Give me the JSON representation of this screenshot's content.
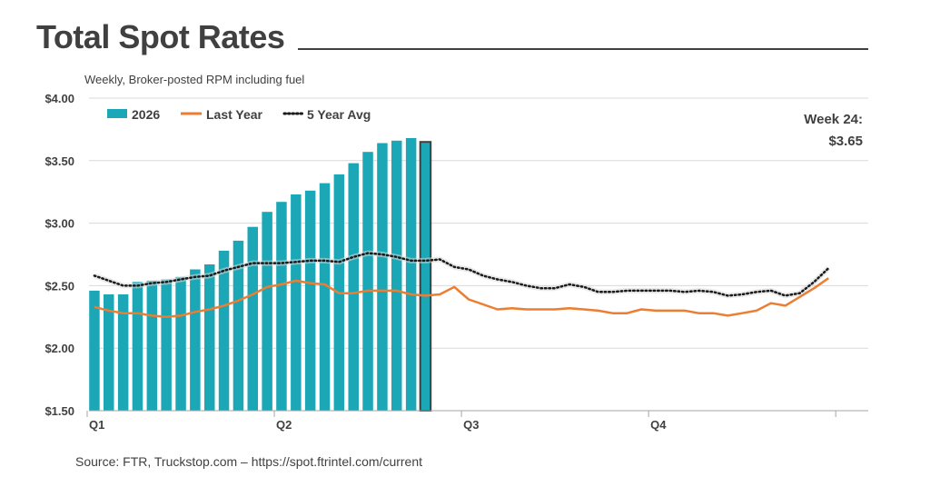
{
  "header": {
    "title": "Total Spot Rates",
    "subtitle": "Weekly, Broker-posted RPM including fuel"
  },
  "footer": {
    "source": "Source: FTR, Truckstop.com – https://spot.ftrintel.com/current"
  },
  "annotation": {
    "line1": "Week 24:",
    "line2": "$3.65"
  },
  "colors": {
    "bar": "#1ba7b6",
    "bar_highlight_border": "#404040",
    "last_year": "#ed7d31",
    "five_year_avg": "#1a1a1a",
    "grid": "#d9d9d9"
  },
  "chart_data": {
    "type": "bar",
    "x_unit": "week",
    "x_range": [
      1,
      53
    ],
    "ylim": [
      1.5,
      4.0
    ],
    "yticks": [
      "$1.50",
      "$2.00",
      "$2.50",
      "$3.00",
      "$3.50",
      "$4.00"
    ],
    "ytick_values": [
      1.5,
      2.0,
      2.5,
      3.0,
      3.5,
      4.0
    ],
    "xticks": [
      {
        "label": "Q1",
        "week": 1
      },
      {
        "label": "Q2",
        "week": 14
      },
      {
        "label": "Q3",
        "week": 27
      },
      {
        "label": "Q4",
        "week": 40
      }
    ],
    "grid": true,
    "legend_position": "top-left",
    "series": [
      {
        "name": "2026",
        "type": "bar",
        "weeks": [
          1,
          2,
          3,
          4,
          5,
          6,
          7,
          8,
          9,
          10,
          11,
          12,
          13,
          14,
          15,
          16,
          17,
          18,
          19,
          20,
          21,
          22,
          23,
          24
        ],
        "values": [
          2.46,
          2.43,
          2.43,
          2.53,
          2.54,
          2.55,
          2.57,
          2.63,
          2.67,
          2.78,
          2.86,
          2.97,
          3.09,
          3.17,
          3.23,
          3.26,
          3.32,
          3.39,
          3.48,
          3.57,
          3.64,
          3.66,
          3.68,
          3.65
        ],
        "highlight_week": 24
      },
      {
        "name": "Last Year",
        "type": "line",
        "values": [
          2.33,
          2.3,
          2.28,
          2.28,
          2.26,
          2.25,
          2.26,
          2.29,
          2.31,
          2.34,
          2.38,
          2.43,
          2.49,
          2.51,
          2.54,
          2.52,
          2.51,
          2.44,
          2.44,
          2.46,
          2.46,
          2.46,
          2.43,
          2.42,
          2.43,
          2.49,
          2.39,
          2.35,
          2.31,
          2.32,
          2.31,
          2.31,
          2.31,
          2.32,
          2.31,
          2.3,
          2.28,
          2.28,
          2.31,
          2.3,
          2.3,
          2.3,
          2.28,
          2.28,
          2.26,
          2.28,
          2.3,
          2.36,
          2.34,
          2.41,
          2.48,
          2.56
        ]
      },
      {
        "name": "5 Year Avg",
        "type": "line",
        "style": "dotted",
        "values": [
          2.58,
          2.54,
          2.5,
          2.5,
          2.52,
          2.53,
          2.55,
          2.57,
          2.58,
          2.62,
          2.65,
          2.68,
          2.68,
          2.68,
          2.69,
          2.7,
          2.7,
          2.69,
          2.73,
          2.76,
          2.75,
          2.73,
          2.7,
          2.7,
          2.71,
          2.65,
          2.63,
          2.58,
          2.55,
          2.53,
          2.5,
          2.48,
          2.48,
          2.51,
          2.49,
          2.45,
          2.45,
          2.46,
          2.46,
          2.46,
          2.46,
          2.45,
          2.46,
          2.45,
          2.42,
          2.43,
          2.45,
          2.46,
          2.42,
          2.44,
          2.53,
          2.64
        ]
      }
    ]
  }
}
